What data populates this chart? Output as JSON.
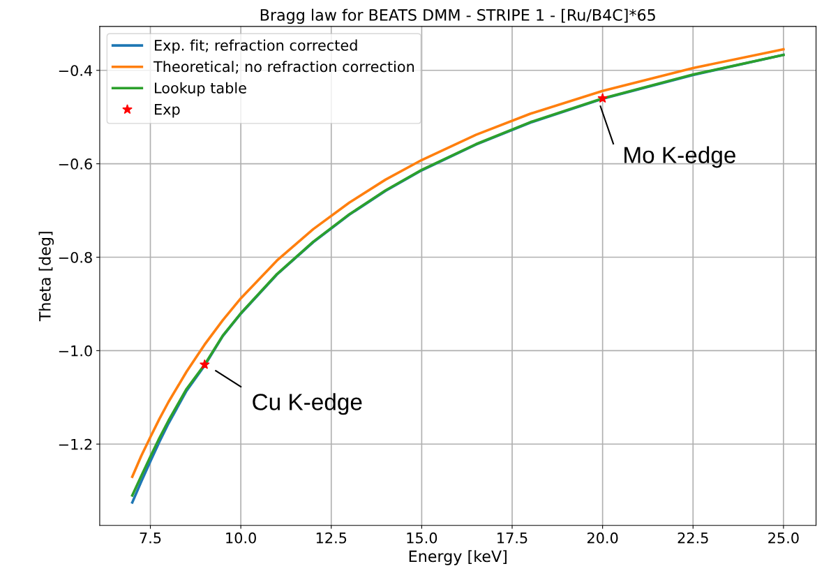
{
  "chart_data": {
    "type": "line",
    "title": "Bragg law for BEATS DMM - STRIPE 1 - [Ru/B4C]*65",
    "xlabel": "Energy [keV]",
    "ylabel": "Theta [deg]",
    "xlim": [
      6.1,
      25.9
    ],
    "xticks": [
      {
        "value": 7.5,
        "label": "7.5"
      },
      {
        "value": 10,
        "label": "10.0"
      },
      {
        "value": 12.5,
        "label": "12.5"
      },
      {
        "value": 15,
        "label": "15.0"
      },
      {
        "value": 17.5,
        "label": "17.5"
      },
      {
        "value": 20,
        "label": "20.0"
      },
      {
        "value": 22.5,
        "label": "22.5"
      },
      {
        "value": 25,
        "label": "25.0"
      }
    ],
    "ylim": [
      -1.374,
      -0.306
    ],
    "yticks": [
      {
        "value": -1.2,
        "label": "−1.2"
      },
      {
        "value": -1.0,
        "label": "−1.0"
      },
      {
        "value": -0.8,
        "label": "−0.8"
      },
      {
        "value": -0.6,
        "label": "−0.6"
      },
      {
        "value": -0.4,
        "label": "−0.4"
      }
    ],
    "grid": true,
    "legend": "top left",
    "series": [
      {
        "name": "Exp. fit; refraction corrected",
        "color": "#1f77b4",
        "x": [
          7,
          7.25,
          7.5,
          7.75,
          8,
          8.5,
          9,
          9.5,
          10,
          11,
          12,
          13,
          14,
          15,
          16.5,
          18,
          20,
          22.5,
          25
        ],
        "values": [
          -1.325,
          -1.28,
          -1.237,
          -1.195,
          -1.156,
          -1.086,
          -1.032,
          -0.969,
          -0.921,
          -0.837,
          -0.768,
          -0.709,
          -0.658,
          -0.614,
          -0.559,
          -0.512,
          -0.461,
          -0.41,
          -0.367
        ]
      },
      {
        "name": "Theoretical; no refraction correction",
        "color": "#ff7f0e",
        "x": [
          7,
          7.25,
          7.5,
          7.75,
          8,
          8.5,
          9,
          9.5,
          10,
          11,
          12,
          13,
          14,
          15,
          16.5,
          18,
          20,
          22.5,
          25
        ],
        "values": [
          -1.27,
          -1.225,
          -1.185,
          -1.146,
          -1.11,
          -1.045,
          -0.987,
          -0.935,
          -0.888,
          -0.807,
          -0.74,
          -0.683,
          -0.634,
          -0.592,
          -0.538,
          -0.493,
          -0.444,
          -0.395,
          -0.355
        ]
      },
      {
        "name": "Lookup table",
        "color": "#2ca02c",
        "x": [
          7,
          7.25,
          7.5,
          7.75,
          8,
          8.5,
          9,
          9.5,
          10,
          11,
          12,
          13,
          14,
          15,
          16.5,
          18,
          20,
          22.5,
          25
        ],
        "values": [
          -1.31,
          -1.268,
          -1.227,
          -1.187,
          -1.15,
          -1.082,
          -1.03,
          -0.968,
          -0.92,
          -0.836,
          -0.767,
          -0.708,
          -0.657,
          -0.613,
          -0.558,
          -0.511,
          -0.46,
          -0.409,
          -0.367
        ]
      },
      {
        "name": "Exp",
        "type": "scatter",
        "marker": "star",
        "color": "#ff0000",
        "x": [
          9,
          20
        ],
        "values": [
          -1.03,
          -0.46
        ]
      }
    ],
    "annotations": [
      "Mo K-edge",
      "Cu K-edge"
    ]
  }
}
